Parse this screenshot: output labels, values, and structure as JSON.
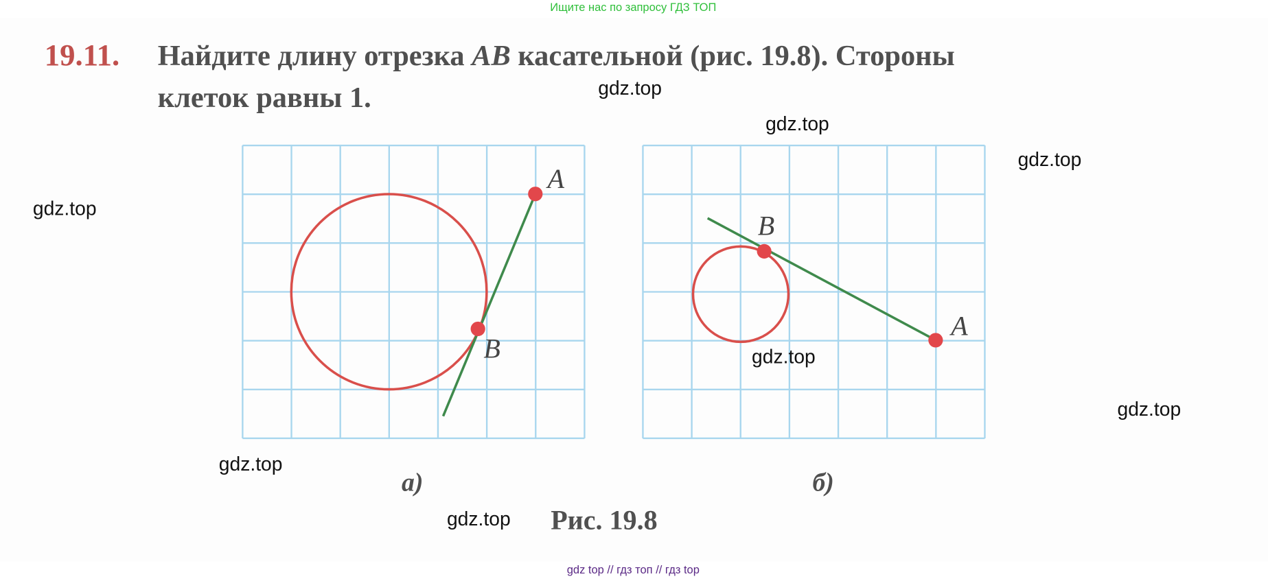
{
  "header": {
    "search_hint": "Ищите нас по запросу ГДЗ ТОП"
  },
  "problem": {
    "number": "19.11.",
    "line1_start": "Найдите длину отрезка ",
    "segment": "AB",
    "line1_end": " касательной (рис. 19.8). Стороны",
    "line2": "клеток равны 1."
  },
  "figures": [
    {
      "label": "а)",
      "points": [
        "A",
        "B"
      ]
    },
    {
      "label": "б)",
      "points": [
        "B",
        "A"
      ]
    }
  ],
  "caption": "Рис. 19.8",
  "watermarks": [
    "gdz.top",
    "gdz.top",
    "gdz.top",
    "gdz.top",
    "gdz.top",
    "gdz.top",
    "gdz.top",
    "gdz.top"
  ],
  "footer": "gdz top  //  гдз топ  //  гдз top"
}
